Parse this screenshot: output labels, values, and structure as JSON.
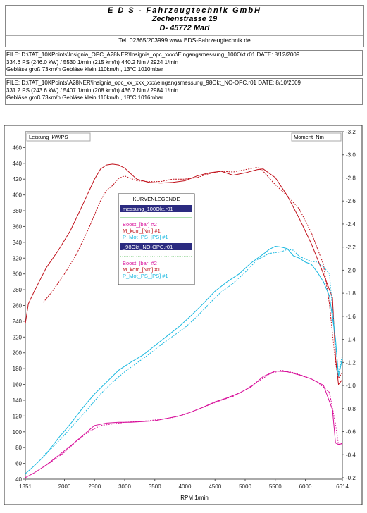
{
  "header": {
    "company": "E D S - Fahrzeugtechnik GmbH",
    "street": "Zechenstrasse 19",
    "city": "D- 45772 Marl",
    "contact": "Tel. 02365/203999      www.EDS-Fahrzeugtechnik.de"
  },
  "files": [
    {
      "line1": "FILE: D:\\TAT_10KPoints\\Insignia_OPC_A28NER\\Insignia_opc_xxxx\\Eingangsmessung_100Okt.r01   DATE: 8/12/2009",
      "line2": "334.6 PS  (246.0 kW) / 5530 1/min (215 km/h)     440.2 Nm / 2924 1/min",
      "line3": "Gebläse groß 73km/h Gebläse klein 110km/h    , 13°C 1010mbar"
    },
    {
      "line1": "FILE: D:\\TAT_10KPoints\\A28NER\\insignia_opc_xx_xxx_xxx\\eingangsmessung_98Okt_NO-OPC.r01  DATE: 8/10/2009",
      "line2": "331.2 PS  (243.6 kW) / 5407 1/min (208 km/h)     436.7 Nm / 2984 1/min",
      "line3": "Gebläse groß 73km/h Gebläse klein 110km/h    , 18°C 1016mbar"
    }
  ],
  "chart_data": {
    "type": "line",
    "left_axis_label": "Leistung_kW/PS",
    "right_axis_label": "Moment_Nm",
    "xlabel": "RPM  1/min",
    "xlim": [
      1351,
      6614
    ],
    "x_ticks": [
      "1351",
      "2000",
      "2500",
      "3000",
      "3500",
      "4000",
      "4500",
      "5000",
      "5500",
      "6000",
      "6614"
    ],
    "x_tick_values": [
      1351,
      2000,
      2500,
      3000,
      3500,
      4000,
      4500,
      5000,
      5500,
      6000,
      6614
    ],
    "ylim": [
      40,
      480
    ],
    "y_ticks": [
      "40",
      "60",
      "80",
      "100",
      "120",
      "140",
      "160",
      "180",
      "200",
      "220",
      "240",
      "260",
      "280",
      "300",
      "320",
      "340",
      "360",
      "380",
      "400",
      "420",
      "440",
      "460"
    ],
    "y2lim": [
      -0.2,
      -3.2
    ],
    "y2_ticks": [
      "-0.2",
      "-0.4",
      "-0.6",
      "-0.8",
      "-1.0",
      "-1.2",
      "-1.4",
      "-1.6",
      "-1.8",
      "-2.0",
      "-2.2",
      "-2.4",
      "-2.6",
      "-2.8",
      "-3.0",
      "-3.2"
    ],
    "legend": {
      "title": "KURVENLEGENDE",
      "file1": "messung_100Okt.r01",
      "file1_items": [
        "Boost_[bar] #2",
        "M_korr_[Nm] #1",
        "P_Mot_PS_[PS] #1"
      ],
      "file2": "_98Okt_NO-OPC.r01",
      "file2_items": [
        "Boost_[bar] #2",
        "M_korr_[Nm] #1",
        "P_Mot_PS_[PS] #1"
      ]
    },
    "series": [
      {
        "name": "M_korr_[Nm] #1",
        "file": "messung_100Okt.r01",
        "color": "#c0101a",
        "dash": false,
        "x": [
          1351,
          1400,
          1500,
          1700,
          1900,
          2100,
          2300,
          2500,
          2600,
          2700,
          2800,
          2900,
          3000,
          3200,
          3400,
          3600,
          3800,
          4000,
          4200,
          4400,
          4600,
          4800,
          5000,
          5200,
          5300,
          5500,
          5700,
          5900,
          6100,
          6300,
          6450,
          6500,
          6550,
          6614
        ],
        "y": [
          237,
          262,
          278,
          308,
          330,
          355,
          387,
          420,
          433,
          438,
          439,
          438,
          434,
          420,
          416,
          415,
          416,
          418,
          424,
          428,
          430,
          425,
          428,
          432,
          433,
          422,
          399,
          370,
          338,
          300,
          270,
          195,
          160,
          166
        ]
      },
      {
        "name": "M_korr_[Nm] #1",
        "file": "_98Okt_NO-OPC.r01",
        "color": "#c0101a",
        "dash": true,
        "x": [
          1650,
          1800,
          2000,
          2200,
          2400,
          2600,
          2700,
          2800,
          2900,
          3000,
          3200,
          3400,
          3600,
          3800,
          4000,
          4200,
          4400,
          4600,
          4800,
          5000,
          5200,
          5300,
          5500,
          5700,
          5900,
          6100,
          6300,
          6400,
          6500,
          6550,
          6614
        ],
        "y": [
          264,
          278,
          300,
          325,
          357,
          393,
          406,
          412,
          421,
          424,
          418,
          417,
          417,
          420,
          420,
          422,
          427,
          430,
          429,
          432,
          435,
          430,
          413,
          399,
          382,
          352,
          312,
          262,
          187,
          168,
          175
        ]
      },
      {
        "name": "P_Mot_PS_[PS] #1",
        "file": "messung_100Okt.r01",
        "color": "#19b8e0",
        "dash": false,
        "x": [
          1351,
          1500,
          1700,
          1900,
          2100,
          2300,
          2500,
          2700,
          2900,
          3100,
          3300,
          3500,
          3700,
          3900,
          4100,
          4300,
          4500,
          4700,
          4900,
          5100,
          5300,
          5400,
          5500,
          5600,
          5700,
          5800,
          5900,
          6000,
          6100,
          6200,
          6300,
          6400,
          6500,
          6550,
          6614
        ],
        "y": [
          47,
          57,
          72,
          92,
          110,
          130,
          148,
          163,
          178,
          188,
          197,
          209,
          221,
          233,
          247,
          262,
          278,
          290,
          300,
          314,
          325,
          331,
          335,
          334,
          332,
          323,
          320,
          315,
          312,
          302,
          290,
          272,
          218,
          170,
          193
        ]
      },
      {
        "name": "P_Mot_PS_[PS] #1",
        "file": "_98Okt_NO-OPC.r01",
        "color": "#19b8e0",
        "dash": true,
        "x": [
          1650,
          1800,
          2000,
          2200,
          2400,
          2600,
          2800,
          3000,
          3200,
          3400,
          3600,
          3800,
          4000,
          4200,
          4400,
          4600,
          4800,
          5000,
          5200,
          5400,
          5600,
          5700,
          5800,
          5900,
          6000,
          6100,
          6200,
          6300,
          6400,
          6500,
          6550,
          6614
        ],
        "y": [
          70,
          80,
          96,
          113,
          130,
          148,
          163,
          176,
          187,
          198,
          210,
          221,
          232,
          246,
          262,
          277,
          288,
          302,
          318,
          326,
          328,
          331,
          330,
          322,
          319,
          316,
          315,
          309,
          300,
          212,
          175,
          197
        ]
      },
      {
        "name": "Boost_[bar] #2",
        "file": "messung_100Okt.r01",
        "color": "#d8109a",
        "dash": false,
        "x": [
          1351,
          1500,
          1700,
          1900,
          2100,
          2300,
          2500,
          2700,
          2900,
          3100,
          3300,
          3500,
          3700,
          3900,
          4100,
          4300,
          4500,
          4700,
          4900,
          5100,
          5300,
          5500,
          5700,
          5900,
          6100,
          6300,
          6450,
          6500,
          6550,
          6614
        ],
        "y": [
          42,
          48,
          58,
          70,
          82,
          95,
          108,
          111,
          112,
          112,
          113,
          114,
          117,
          120,
          125,
          131,
          138,
          143,
          149,
          157,
          170,
          177,
          176,
          172,
          167,
          159,
          128,
          86,
          84,
          85
        ]
      },
      {
        "name": "Boost_[bar] #2",
        "file": "_98Okt_NO-OPC.r01",
        "color": "#d8109a",
        "dash": true,
        "x": [
          1650,
          1800,
          2000,
          2200,
          2400,
          2600,
          2800,
          3000,
          3200,
          3400,
          3600,
          3800,
          4000,
          4200,
          4400,
          4600,
          4800,
          5000,
          5200,
          5400,
          5600,
          5800,
          6000,
          6200,
          6400,
          6500,
          6550,
          6614
        ],
        "y": [
          55,
          63,
          74,
          88,
          100,
          108,
          110,
          112,
          113,
          114,
          116,
          118,
          122,
          128,
          134,
          140,
          145,
          153,
          163,
          173,
          178,
          175,
          170,
          163,
          150,
          110,
          84,
          86
        ]
      }
    ]
  }
}
